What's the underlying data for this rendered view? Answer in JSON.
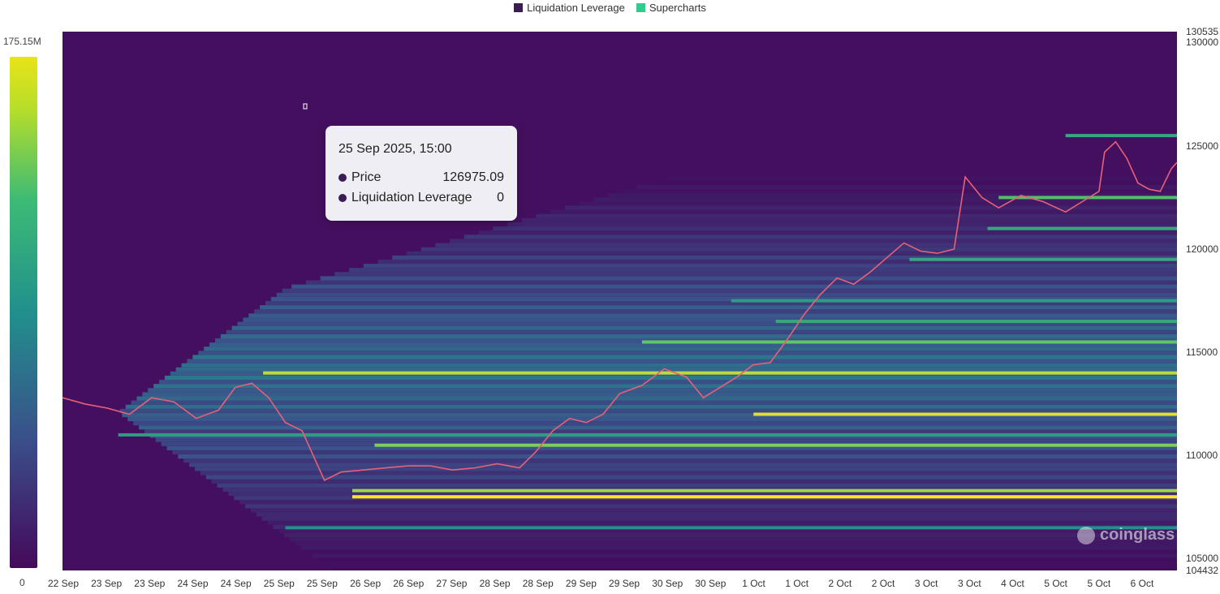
{
  "legend": [
    {
      "label": "Liquidation Leverage",
      "color": "#3b1c54"
    },
    {
      "label": "Supercharts",
      "color": "#2ecc8f"
    }
  ],
  "colorbar": {
    "max_label": "175.15M",
    "min_label": "0"
  },
  "tooltip": {
    "title": "25 Sep 2025, 15:00",
    "rows": [
      {
        "label": "Price",
        "value": "126975.09"
      },
      {
        "label": "Liquidation Leverage",
        "value": "0"
      }
    ]
  },
  "watermark": {
    "text": "coinglass",
    "icon": "coinglass-logo-icon"
  },
  "chart_data": {
    "type": "heatmap",
    "title": "",
    "xlabel": "",
    "ylabel": "",
    "ylim": [
      104432,
      130535
    ],
    "y_ticks": [
      "130535",
      "130000",
      "125000",
      "120000",
      "115000",
      "110000",
      "105000",
      "104432"
    ],
    "x_ticks": [
      "22 Sep",
      "23 Sep",
      "23 Sep",
      "24 Sep",
      "24 Sep",
      "25 Sep",
      "25 Sep",
      "26 Sep",
      "26 Sep",
      "27 Sep",
      "28 Sep",
      "28 Sep",
      "29 Sep",
      "29 Sep",
      "30 Sep",
      "30 Sep",
      "1 Oct",
      "1 Oct",
      "2 Oct",
      "2 Oct",
      "3 Oct",
      "3 Oct",
      "4 Oct",
      "5 Oct",
      "5 Oct",
      "6 Oct"
    ],
    "color_range": [
      0,
      175150000
    ],
    "price_series": [
      {
        "t": 0,
        "p": 112800
      },
      {
        "t": 0.02,
        "p": 112500
      },
      {
        "t": 0.04,
        "p": 112300
      },
      {
        "t": 0.06,
        "p": 112000
      },
      {
        "t": 0.08,
        "p": 112800
      },
      {
        "t": 0.1,
        "p": 112600
      },
      {
        "t": 0.12,
        "p": 111800
      },
      {
        "t": 0.14,
        "p": 112200
      },
      {
        "t": 0.155,
        "p": 113300
      },
      {
        "t": 0.17,
        "p": 113500
      },
      {
        "t": 0.185,
        "p": 112800
      },
      {
        "t": 0.2,
        "p": 111600
      },
      {
        "t": 0.215,
        "p": 111200
      },
      {
        "t": 0.225,
        "p": 110000
      },
      {
        "t": 0.235,
        "p": 108800
      },
      {
        "t": 0.25,
        "p": 109200
      },
      {
        "t": 0.27,
        "p": 109300
      },
      {
        "t": 0.29,
        "p": 109400
      },
      {
        "t": 0.31,
        "p": 109500
      },
      {
        "t": 0.33,
        "p": 109500
      },
      {
        "t": 0.35,
        "p": 109300
      },
      {
        "t": 0.37,
        "p": 109400
      },
      {
        "t": 0.39,
        "p": 109600
      },
      {
        "t": 0.41,
        "p": 109400
      },
      {
        "t": 0.425,
        "p": 110200
      },
      {
        "t": 0.44,
        "p": 111200
      },
      {
        "t": 0.455,
        "p": 111800
      },
      {
        "t": 0.47,
        "p": 111600
      },
      {
        "t": 0.485,
        "p": 112000
      },
      {
        "t": 0.5,
        "p": 113000
      },
      {
        "t": 0.52,
        "p": 113400
      },
      {
        "t": 0.54,
        "p": 114200
      },
      {
        "t": 0.56,
        "p": 113800
      },
      {
        "t": 0.575,
        "p": 112800
      },
      {
        "t": 0.59,
        "p": 113300
      },
      {
        "t": 0.605,
        "p": 113800
      },
      {
        "t": 0.62,
        "p": 114400
      },
      {
        "t": 0.635,
        "p": 114500
      },
      {
        "t": 0.65,
        "p": 115600
      },
      {
        "t": 0.665,
        "p": 116800
      },
      {
        "t": 0.68,
        "p": 117800
      },
      {
        "t": 0.695,
        "p": 118600
      },
      {
        "t": 0.71,
        "p": 118300
      },
      {
        "t": 0.725,
        "p": 118900
      },
      {
        "t": 0.74,
        "p": 119600
      },
      {
        "t": 0.755,
        "p": 120300
      },
      {
        "t": 0.77,
        "p": 119900
      },
      {
        "t": 0.785,
        "p": 119800
      },
      {
        "t": 0.8,
        "p": 120000
      },
      {
        "t": 0.81,
        "p": 123500
      },
      {
        "t": 0.825,
        "p": 122500
      },
      {
        "t": 0.84,
        "p": 122000
      },
      {
        "t": 0.86,
        "p": 122600
      },
      {
        "t": 0.88,
        "p": 122300
      },
      {
        "t": 0.9,
        "p": 121800
      },
      {
        "t": 0.915,
        "p": 122300
      },
      {
        "t": 0.93,
        "p": 122800
      },
      {
        "t": 0.935,
        "p": 124700
      },
      {
        "t": 0.945,
        "p": 125200
      },
      {
        "t": 0.955,
        "p": 124400
      },
      {
        "t": 0.965,
        "p": 123200
      },
      {
        "t": 0.975,
        "p": 122900
      },
      {
        "t": 0.985,
        "p": 122800
      },
      {
        "t": 0.995,
        "p": 123900
      },
      {
        "t": 1.0,
        "p": 124200
      }
    ],
    "liquidation_bands": [
      {
        "price": 108000,
        "intensity": 1.0,
        "start": 0.26
      },
      {
        "price": 108300,
        "intensity": 0.85,
        "start": 0.26
      },
      {
        "price": 112000,
        "intensity": 0.95,
        "start": 0.62
      },
      {
        "price": 114000,
        "intensity": 0.9,
        "start": 0.18
      },
      {
        "price": 115500,
        "intensity": 0.75,
        "start": 0.52
      },
      {
        "price": 116500,
        "intensity": 0.6,
        "start": 0.64
      },
      {
        "price": 117500,
        "intensity": 0.55,
        "start": 0.6
      },
      {
        "price": 110500,
        "intensity": 0.8,
        "start": 0.28
      },
      {
        "price": 119500,
        "intensity": 0.6,
        "start": 0.76
      },
      {
        "price": 121000,
        "intensity": 0.6,
        "start": 0.83
      },
      {
        "price": 122500,
        "intensity": 0.7,
        "start": 0.84
      },
      {
        "price": 125500,
        "intensity": 0.6,
        "start": 0.9
      },
      {
        "price": 106500,
        "intensity": 0.5,
        "start": 0.2
      },
      {
        "price": 111000,
        "intensity": 0.55,
        "start": 0.05
      }
    ]
  }
}
